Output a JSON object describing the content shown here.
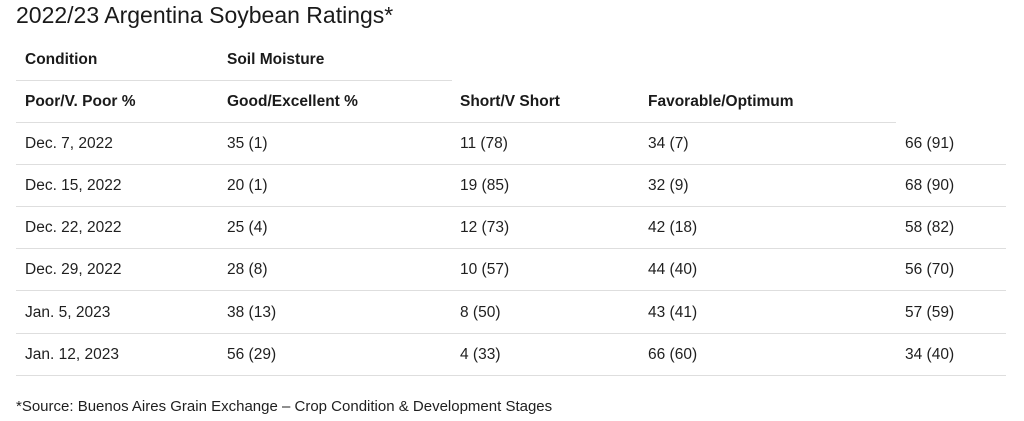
{
  "title": "2022/23 Argentina Soybean Ratings*",
  "header": {
    "row1": [
      "Condition",
      "Soil Moisture"
    ],
    "row2": [
      "Poor/V. Poor %",
      "Good/Excellent %",
      "Short/V Short",
      "Favorable/Optimum"
    ]
  },
  "rows": [
    [
      "Dec. 7, 2022",
      "35 (1)",
      "11 (78)",
      "34 (7)",
      "66 (91)"
    ],
    [
      "Dec. 15, 2022",
      "20 (1)",
      "19 (85)",
      "32 (9)",
      "68 (90)"
    ],
    [
      "Dec. 22, 2022",
      "25 (4)",
      "12 (73)",
      "42 (18)",
      "58 (82)"
    ],
    [
      "Dec. 29, 2022",
      "28 (8)",
      "10 (57)",
      "44 (40)",
      "56 (70)"
    ],
    [
      "Jan. 5, 2023",
      "38 (13)",
      "8 (50)",
      "43 (41)",
      "57 (59)"
    ],
    [
      "Jan. 12, 2023",
      "56 (29)",
      "4 (33)",
      "66 (60)",
      "34 (40)"
    ]
  ],
  "footnote": "*Source: Buenos Aires Grain Exchange – Crop Condition & Development Stages"
}
